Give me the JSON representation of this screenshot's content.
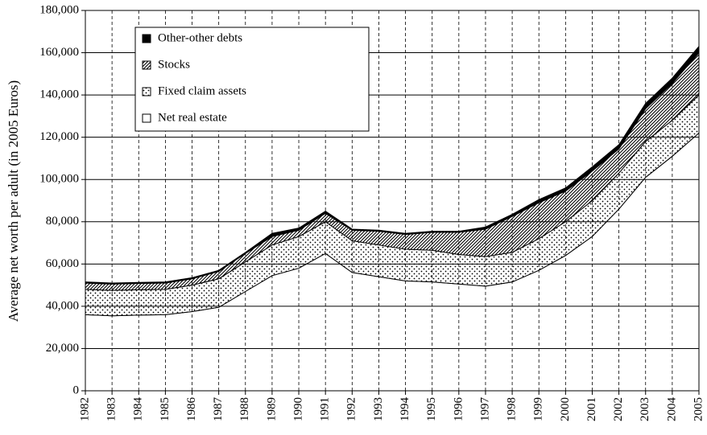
{
  "chart_data": {
    "type": "stacked-area",
    "y_label": "Average net worth per adult (in 2005 Euros)",
    "categories": [
      "1982",
      "1983",
      "1984",
      "1985",
      "1986",
      "1987",
      "1988",
      "1989",
      "1990",
      "1991",
      "1992",
      "1993",
      "1994",
      "1995",
      "1996",
      "1997",
      "1998",
      "1999",
      "2000",
      "2001",
      "2002",
      "2003",
      "2004",
      "2005"
    ],
    "series": [
      {
        "name": "Net real estate",
        "color": "#ffffff",
        "pattern": "none",
        "values": [
          36000,
          35500,
          35800,
          36000,
          37500,
          39500,
          47000,
          54500,
          58000,
          65000,
          56000,
          54000,
          52000,
          51500,
          50500,
          49500,
          51500,
          57000,
          64000,
          73000,
          86000,
          101000,
          111000,
          122000
        ]
      },
      {
        "name": "Fixed claim assets",
        "color": "#000000",
        "pattern": "dots",
        "values": [
          12000,
          12000,
          12000,
          12000,
          12500,
          13500,
          14000,
          14500,
          15000,
          15000,
          15000,
          15000,
          15000,
          15000,
          14000,
          14000,
          14000,
          15000,
          16000,
          17000,
          17000,
          17000,
          17000,
          18000
        ]
      },
      {
        "name": "Stocks",
        "color": "#000000",
        "pattern": "hatch",
        "values": [
          3000,
          3000,
          3000,
          3000,
          3000,
          3500,
          4000,
          4000,
          3000,
          4000,
          5000,
          6500,
          7000,
          8500,
          10500,
          13000,
          17000,
          17000,
          14500,
          14000,
          11500,
          15500,
          17500,
          20000
        ]
      },
      {
        "name": "Other-other debts",
        "color": "#000000",
        "pattern": "solid",
        "values": [
          500,
          500,
          500,
          500,
          500,
          500,
          500,
          1500,
          1000,
          1000,
          500,
          500,
          500,
          500,
          500,
          1000,
          1000,
          1500,
          1500,
          2000,
          2000,
          2500,
          2500,
          3000
        ]
      }
    ],
    "ylim": [
      0,
      180000
    ],
    "yticks": [
      0,
      {
        "value": 20000,
        "label": "20,000"
      },
      {
        "value": 40000,
        "label": "40,000"
      },
      {
        "value": 60000,
        "label": "60,000"
      },
      {
        "value": 80000,
        "label": "80,000"
      },
      {
        "value": 100000,
        "label": "100,000"
      },
      {
        "value": 120000,
        "label": "120,000"
      },
      {
        "value": 140000,
        "label": "140,000"
      },
      {
        "value": 160000,
        "label": "160,000"
      },
      {
        "value": 180000,
        "label": "180,000"
      }
    ],
    "grid": true,
    "legend": "top-left"
  }
}
